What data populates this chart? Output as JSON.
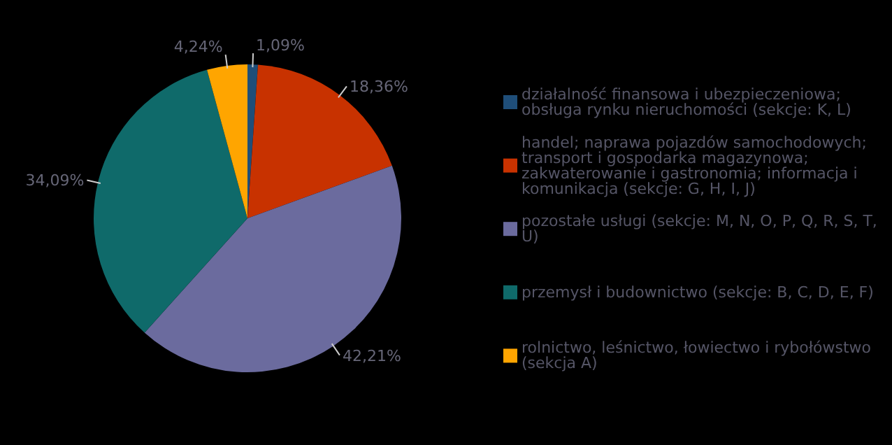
{
  "chart_data": {
    "type": "pie",
    "categories": [
      "działalność finansowa i ubezpieczeniowa; obsługa rynku nieruchomości (sekcje: K, L)",
      "handel; naprawa pojazdów samochodowych; transport i gospodarka magazynowa; zakwaterowanie i gastronomia; informacja i komunikacja (sekcje: G, H, I, J)",
      "pozostałe usługi (sekcje: M, N, O, P, Q, R, S, T, U)",
      "przemysł i budownictwo (sekcje: B, C, D, E, F)",
      "rolnictwo, leśnictwo, łowiectwo i rybołówstwo (sekcja A)"
    ],
    "values": [
      1.09,
      18.36,
      42.21,
      34.09,
      4.24
    ],
    "value_labels": [
      "1,09%",
      "18,36%",
      "42,21%",
      "34,09%",
      "4,24%"
    ],
    "colors": [
      "#1f4e79",
      "#c83200",
      "#6b6b9e",
      "#0f6a6a",
      "#ffa500"
    ],
    "legend": "right"
  }
}
